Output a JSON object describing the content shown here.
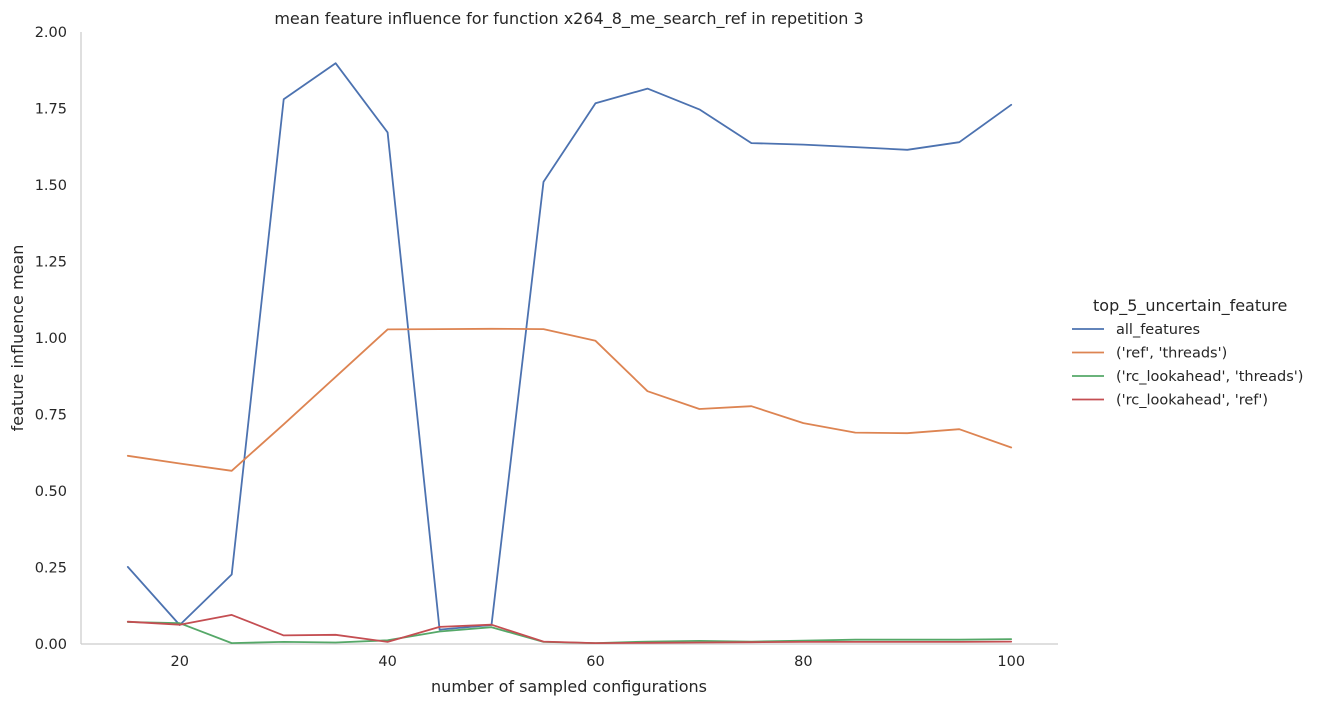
{
  "chart_data": {
    "type": "line",
    "title": "mean feature influence for function x264_8_me_search_ref in repetition 3",
    "xlabel": "number of sampled configurations",
    "ylabel": "feature influence mean",
    "xlim": [
      10.5,
      104.5
    ],
    "ylim": [
      0,
      2.0
    ],
    "xticks": [
      20,
      40,
      60,
      80,
      100
    ],
    "yticks": [
      "0.00",
      "0.25",
      "0.50",
      "0.75",
      "1.00",
      "1.25",
      "1.50",
      "1.75",
      "2.00"
    ],
    "grid": false,
    "x": [
      15,
      20,
      25,
      30,
      35,
      40,
      45,
      50,
      55,
      60,
      65,
      70,
      75,
      80,
      85,
      90,
      95,
      100
    ],
    "legend": {
      "title": "top_5_uncertain_feature",
      "placement": "right"
    },
    "series": [
      {
        "name": "all_features",
        "color": "#4c72b0",
        "values": [
          0.252,
          0.062,
          0.227,
          1.78,
          1.898,
          1.672,
          0.047,
          0.062,
          1.51,
          1.767,
          1.815,
          1.747,
          1.637,
          1.632,
          1.624,
          1.615,
          1.64,
          1.762
        ]
      },
      {
        "name": "('ref', 'threads')",
        "color": "#dd8452",
        "values": [
          0.615,
          0.59,
          0.566,
          0.718,
          0.873,
          1.028,
          1.029,
          1.03,
          1.029,
          0.991,
          0.826,
          0.768,
          0.777,
          0.722,
          0.691,
          0.689,
          0.702,
          0.642
        ]
      },
      {
        "name": "('rc_lookahead', 'threads')",
        "color": "#55a868",
        "values": [
          0.072,
          0.068,
          0.003,
          0.007,
          0.005,
          0.012,
          0.041,
          0.055,
          0.007,
          0.003,
          0.008,
          0.01,
          0.008,
          0.011,
          0.014,
          0.014,
          0.014,
          0.016
        ]
      },
      {
        "name": "('rc_lookahead', 'ref')",
        "color": "#c44e52",
        "values": [
          0.073,
          0.063,
          0.095,
          0.028,
          0.03,
          0.007,
          0.056,
          0.063,
          0.008,
          0.003,
          0.004,
          0.005,
          0.006,
          0.007,
          0.007,
          0.007,
          0.007,
          0.008
        ]
      }
    ]
  }
}
